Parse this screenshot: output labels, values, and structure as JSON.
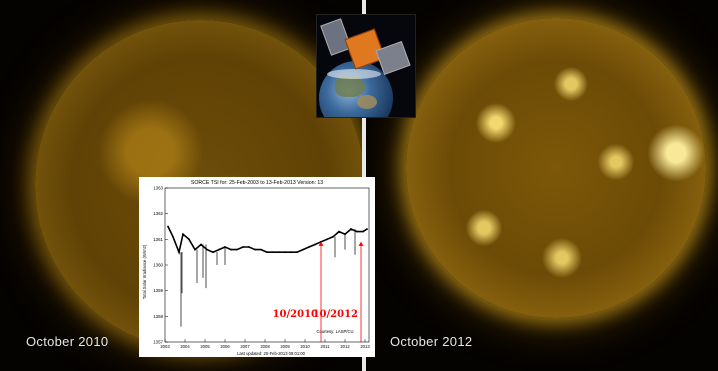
{
  "captions": {
    "left": "October 2010",
    "right": "October 2012"
  },
  "colors": {
    "background": "#000000",
    "sun_gold": "#b5860f",
    "caption_text": "#e6e6e6",
    "annotation_red": "#ff0000"
  },
  "icons": {
    "satellite": "satellite-icon",
    "earth": "earth-icon"
  },
  "chart_data": {
    "type": "line",
    "title": "SORCE TSI for: 25-Feb-2003 to 13-Feb-2013 Version: 13",
    "ylabel": "Total Solar Irradiance (W/m2)",
    "xlabel": "",
    "footer": "Last updated: 20-Feb-2013 08:01:00",
    "credit": "Courtesy: LASP/CU",
    "ylim": [
      1357,
      1363
    ],
    "y_ticks": [
      "1357",
      "1358",
      "1359",
      "1360",
      "1361",
      "1362",
      "1363"
    ],
    "x_ticks": [
      "2003",
      "2004",
      "2005",
      "2006",
      "2007",
      "2008",
      "2009",
      "2010",
      "2011",
      "2012",
      "2013"
    ],
    "grid": false,
    "series": [
      {
        "x": [
          2003.15,
          2003.4,
          2003.7,
          2003.9,
          2004.2,
          2004.5,
          2004.8,
          2005.1,
          2005.4,
          2005.7,
          2006.0,
          2006.3,
          2006.6,
          2006.9,
          2007.2,
          2007.5,
          2007.8,
          2008.1,
          2008.4,
          2008.7,
          2009.0,
          2009.3,
          2009.6,
          2009.9,
          2010.2,
          2010.5,
          2010.8,
          2011.1,
          2011.4,
          2011.7,
          2012.0,
          2012.3,
          2012.6,
          2012.9,
          2013.1
        ],
        "values": [
          1361.5,
          1361.1,
          1360.5,
          1361.2,
          1361.0,
          1360.6,
          1360.8,
          1360.6,
          1360.5,
          1360.6,
          1360.7,
          1360.6,
          1360.6,
          1360.7,
          1360.7,
          1360.6,
          1360.6,
          1360.5,
          1360.5,
          1360.5,
          1360.5,
          1360.5,
          1360.5,
          1360.6,
          1360.7,
          1360.8,
          1360.9,
          1361.0,
          1361.1,
          1361.3,
          1361.2,
          1361.4,
          1361.3,
          1361.3,
          1361.4
        ]
      }
    ],
    "dips": [
      {
        "x": 2003.8,
        "y": 1357.6
      },
      {
        "x": 2003.85,
        "y": 1358.9
      },
      {
        "x": 2004.6,
        "y": 1359.3
      },
      {
        "x": 2004.9,
        "y": 1359.5
      },
      {
        "x": 2005.05,
        "y": 1359.1
      },
      {
        "x": 2005.6,
        "y": 1360.0
      },
      {
        "x": 2006.0,
        "y": 1360.0
      },
      {
        "x": 2011.5,
        "y": 1360.3
      },
      {
        "x": 2012.0,
        "y": 1360.6
      },
      {
        "x": 2012.5,
        "y": 1360.4
      }
    ],
    "annotations": [
      {
        "label": "10/2010",
        "x": 2010.8
      },
      {
        "label": "10/2012",
        "x": 2012.8
      }
    ]
  }
}
